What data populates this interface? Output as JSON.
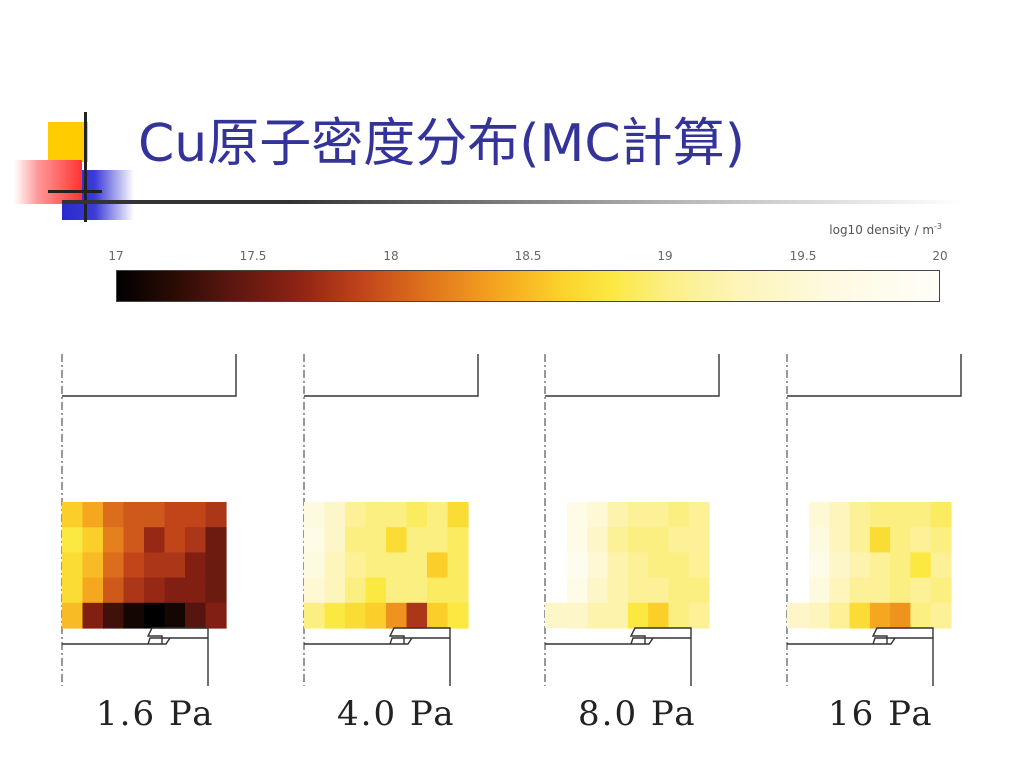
{
  "slide": {
    "title": "Cu原子密度分布(MC計算)",
    "accent_colors": {
      "title": "#333399",
      "square_yellow": "#ffcc00",
      "square_blue": "#3333cc",
      "square_red": "#ff3333"
    }
  },
  "colorbar": {
    "label": "log10 density / m",
    "label_exponent": "-3",
    "ticks": [
      "17",
      "17.5",
      "18",
      "18.5",
      "19",
      "19.5",
      "20"
    ],
    "range": [
      17,
      20
    ]
  },
  "panels": [
    {
      "pressure_label": "1.6 Pa",
      "grid": [
        [
          18.6,
          18.4,
          18.1,
          18.0,
          18.0,
          17.9,
          17.9,
          17.8
        ],
        [
          18.8,
          18.6,
          18.2,
          18.0,
          17.7,
          17.9,
          17.8,
          17.5
        ],
        [
          18.7,
          18.5,
          18.1,
          17.9,
          17.8,
          17.8,
          17.6,
          17.5
        ],
        [
          18.7,
          18.4,
          18.0,
          17.8,
          17.7,
          17.6,
          17.6,
          17.5
        ],
        [
          18.5,
          17.6,
          17.3,
          17.1,
          17.0,
          17.1,
          17.4,
          17.6
        ]
      ]
    },
    {
      "pressure_label": "4.0 Pa",
      "grid": [
        [
          19.6,
          19.4,
          19.1,
          19.0,
          19.0,
          18.9,
          19.0,
          18.7
        ],
        [
          19.7,
          19.4,
          19.0,
          19.0,
          18.7,
          19.0,
          19.0,
          18.9
        ],
        [
          19.6,
          19.3,
          19.1,
          19.0,
          19.0,
          19.0,
          18.6,
          18.9
        ],
        [
          19.5,
          19.3,
          19.0,
          18.8,
          19.0,
          19.0,
          18.9,
          18.9
        ],
        [
          19.0,
          18.8,
          18.7,
          18.6,
          18.3,
          17.8,
          18.6,
          18.8
        ]
      ]
    },
    {
      "pressure_label": "8.0 Pa",
      "grid": [
        [
          19.7,
          19.5,
          19.2,
          19.1,
          19.1,
          19.0,
          19.1
        ],
        [
          19.7,
          19.4,
          19.1,
          19.0,
          19.0,
          19.1,
          19.1
        ],
        [
          19.8,
          19.5,
          19.2,
          19.1,
          19.0,
          19.0,
          19.1
        ],
        [
          19.7,
          19.4,
          19.2,
          19.1,
          19.1,
          19.0,
          19.0
        ],
        [
          19.4,
          19.2,
          19.2,
          18.8,
          18.6,
          19.0,
          19.1
        ]
      ]
    },
    {
      "pressure_label": "16 Pa",
      "grid": [
        [
          19.5,
          19.3,
          19.1,
          19.0,
          19.0,
          19.0,
          18.9
        ],
        [
          19.6,
          19.3,
          19.1,
          18.7,
          19.0,
          19.1,
          19.0
        ],
        [
          19.7,
          19.4,
          19.2,
          19.1,
          19.0,
          18.8,
          19.1
        ],
        [
          19.6,
          19.3,
          19.1,
          19.1,
          19.0,
          19.1,
          19.0
        ],
        [
          19.3,
          19.1,
          18.7,
          18.4,
          18.3,
          19.0,
          19.1
        ]
      ]
    }
  ]
}
